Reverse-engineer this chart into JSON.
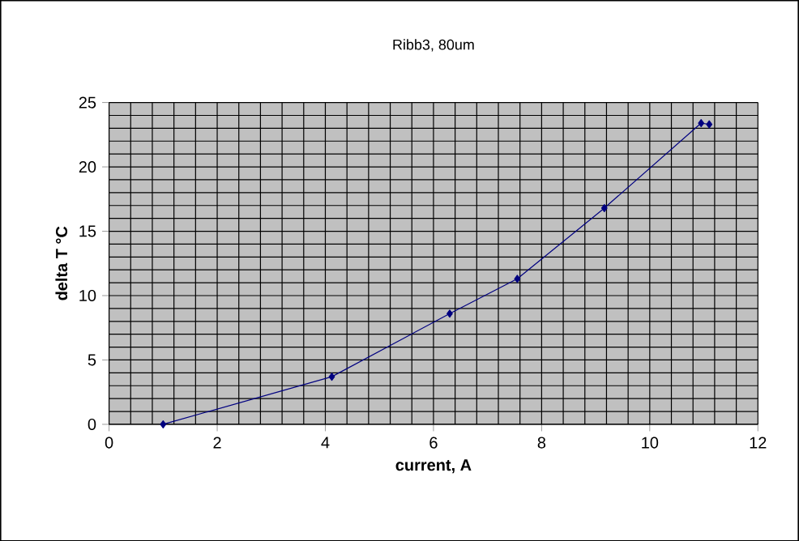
{
  "chart_data": {
    "type": "line",
    "title": "Ribb3, 80um",
    "xlabel": "current, A",
    "ylabel": "delta T °C",
    "x": [
      1.0,
      4.12,
      6.3,
      7.55,
      9.16,
      10.95,
      11.1
    ],
    "series": [
      {
        "color": "#000080",
        "values": [
          0.0,
          3.7,
          8.6,
          11.3,
          16.8,
          23.4,
          23.3
        ]
      }
    ],
    "xlim": [
      0,
      12
    ],
    "xticks": [
      0,
      2,
      4,
      6,
      8,
      10,
      12
    ],
    "ylim": [
      0,
      25
    ],
    "yticks": [
      0,
      5,
      10,
      15,
      20,
      25
    ],
    "grid": true,
    "marker": "diamond",
    "line_style": "solid"
  }
}
